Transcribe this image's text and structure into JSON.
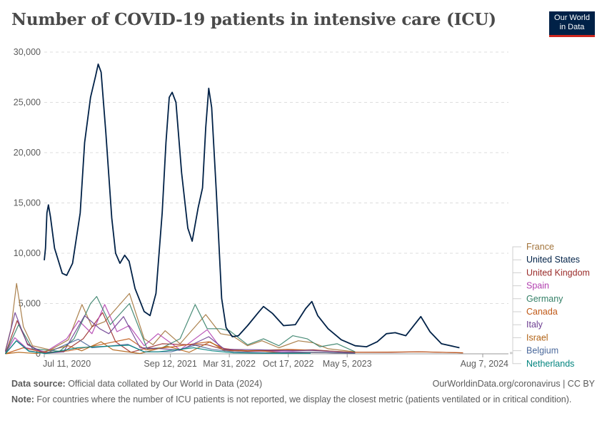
{
  "chart_data": {
    "type": "line",
    "title": "Number of COVID-19 patients in intensive care (ICU)",
    "xlabel": "",
    "ylabel": "",
    "ylim": [
      0,
      30000
    ],
    "y_ticks": [
      0,
      5000,
      10000,
      15000,
      20000,
      25000,
      30000
    ],
    "y_tick_labels": [
      "0",
      "5,000",
      "10,000",
      "15,000",
      "20,000",
      "25,000",
      "30,000"
    ],
    "xlim": [
      "2020-03-01",
      "2024-08-07"
    ],
    "x_ticks": [
      "2020-07-11",
      "2021-09-12",
      "2022-03-31",
      "2022-10-17",
      "2023-05-05",
      "2024-08-07"
    ],
    "x_tick_labels": [
      "Jul 11, 2020",
      "Sep 12, 2021",
      "Mar 31, 2022",
      "Oct 17, 2022",
      "May 5, 2023",
      "Aug 7, 2024"
    ],
    "grid": "horizontal dashed",
    "legend_position": "right",
    "series": [
      {
        "name": "France",
        "color": "#a2733a",
        "points": [
          [
            "2020-03-01",
            300
          ],
          [
            "2020-03-20",
            2500
          ],
          [
            "2020-04-08",
            7000
          ],
          [
            "2020-05-01",
            2700
          ],
          [
            "2020-06-01",
            800
          ],
          [
            "2020-08-01",
            400
          ],
          [
            "2020-10-01",
            1400
          ],
          [
            "2020-11-16",
            4900
          ],
          [
            "2020-12-20",
            2700
          ],
          [
            "2021-02-01",
            3200
          ],
          [
            "2021-04-26",
            6000
          ],
          [
            "2021-06-15",
            1500
          ],
          [
            "2021-07-15",
            900
          ],
          [
            "2021-08-25",
            2300
          ],
          [
            "2021-10-15",
            1000
          ],
          [
            "2022-01-10",
            3900
          ],
          [
            "2022-03-01",
            2000
          ],
          [
            "2022-04-10",
            1800
          ],
          [
            "2022-06-01",
            800
          ],
          [
            "2022-07-20",
            1300
          ],
          [
            "2022-09-15",
            600
          ],
          [
            "2022-11-20",
            1300
          ],
          [
            "2023-01-10",
            1100
          ],
          [
            "2023-03-01",
            500
          ],
          [
            "2023-06-01",
            200
          ]
        ]
      },
      {
        "name": "United States",
        "color": "#002147",
        "points": [
          [
            "2020-07-11",
            9300
          ],
          [
            "2020-07-15",
            10500
          ],
          [
            "2020-07-20",
            14000
          ],
          [
            "2020-07-25",
            14800
          ],
          [
            "2020-08-01",
            13600
          ],
          [
            "2020-08-15",
            10500
          ],
          [
            "2020-09-10",
            8000
          ],
          [
            "2020-09-25",
            7800
          ],
          [
            "2020-10-15",
            9000
          ],
          [
            "2020-11-10",
            14000
          ],
          [
            "2020-11-25",
            21000
          ],
          [
            "2020-12-15",
            25500
          ],
          [
            "2021-01-01",
            27600
          ],
          [
            "2021-01-10",
            28800
          ],
          [
            "2021-01-20",
            28000
          ],
          [
            "2021-02-05",
            22000
          ],
          [
            "2021-02-25",
            13500
          ],
          [
            "2021-03-10",
            10000
          ],
          [
            "2021-03-25",
            9000
          ],
          [
            "2021-04-10",
            9800
          ],
          [
            "2021-04-25",
            9200
          ],
          [
            "2021-05-15",
            6500
          ],
          [
            "2021-06-15",
            4200
          ],
          [
            "2021-07-05",
            3800
          ],
          [
            "2021-07-25",
            6000
          ],
          [
            "2021-08-15",
            14000
          ],
          [
            "2021-08-28",
            21000
          ],
          [
            "2021-09-08",
            25500
          ],
          [
            "2021-09-18",
            26000
          ],
          [
            "2021-10-01",
            25000
          ],
          [
            "2021-10-20",
            18000
          ],
          [
            "2021-11-10",
            12500
          ],
          [
            "2021-11-25",
            11200
          ],
          [
            "2021-12-15",
            14500
          ],
          [
            "2021-12-30",
            16500
          ],
          [
            "2022-01-10",
            22500
          ],
          [
            "2022-01-20",
            26400
          ],
          [
            "2022-01-30",
            24500
          ],
          [
            "2022-02-15",
            16000
          ],
          [
            "2022-03-05",
            5500
          ],
          [
            "2022-03-20",
            2600
          ],
          [
            "2022-04-10",
            1700
          ],
          [
            "2022-05-01",
            1800
          ],
          [
            "2022-06-01",
            2800
          ],
          [
            "2022-07-10",
            4200
          ],
          [
            "2022-07-25",
            4700
          ],
          [
            "2022-08-25",
            4000
          ],
          [
            "2022-10-01",
            2800
          ],
          [
            "2022-11-10",
            2900
          ],
          [
            "2022-12-15",
            4500
          ],
          [
            "2023-01-05",
            5200
          ],
          [
            "2023-01-25",
            3800
          ],
          [
            "2023-03-01",
            2500
          ],
          [
            "2023-04-15",
            1400
          ],
          [
            "2023-06-01",
            800
          ],
          [
            "2023-07-10",
            700
          ],
          [
            "2023-08-15",
            1200
          ],
          [
            "2023-09-15",
            2000
          ],
          [
            "2023-10-15",
            2100
          ],
          [
            "2023-11-20",
            1800
          ],
          [
            "2024-01-10",
            3700
          ],
          [
            "2024-02-10",
            2200
          ],
          [
            "2024-03-20",
            1000
          ],
          [
            "2024-05-20",
            600
          ]
        ]
      },
      {
        "name": "United Kingdom",
        "color": "#9a2c2a",
        "points": [
          [
            "2020-03-01",
            0
          ],
          [
            "2020-04-10",
            3300
          ],
          [
            "2020-05-15",
            1000
          ],
          [
            "2020-07-01",
            150
          ],
          [
            "2020-09-15",
            200
          ],
          [
            "2020-11-20",
            1500
          ],
          [
            "2021-01-25",
            4100
          ],
          [
            "2021-03-10",
            1200
          ],
          [
            "2021-05-01",
            150
          ],
          [
            "2021-08-15",
            1000
          ],
          [
            "2021-11-15",
            900
          ],
          [
            "2022-01-15",
            900
          ],
          [
            "2022-03-15",
            400
          ],
          [
            "2022-06-01",
            250
          ],
          [
            "2022-08-01",
            300
          ],
          [
            "2023-01-10",
            400
          ],
          [
            "2023-05-01",
            150
          ],
          [
            "2023-10-01",
            150
          ],
          [
            "2024-01-01",
            200
          ],
          [
            "2024-06-01",
            100
          ]
        ]
      },
      {
        "name": "Spain",
        "color": "#b13faf",
        "points": [
          [
            "2020-03-01",
            0
          ],
          [
            "2020-04-02",
            1600
          ],
          [
            "2020-05-10",
            600
          ],
          [
            "2020-07-15",
            200
          ],
          [
            "2020-09-25",
            1500
          ],
          [
            "2020-11-05",
            3300
          ],
          [
            "2020-12-20",
            2000
          ],
          [
            "2021-02-01",
            4900
          ],
          [
            "2021-03-15",
            2200
          ],
          [
            "2021-04-25",
            2800
          ],
          [
            "2021-06-15",
            800
          ],
          [
            "2021-08-01",
            2000
          ],
          [
            "2021-10-15",
            400
          ],
          [
            "2022-01-15",
            2400
          ],
          [
            "2022-03-01",
            600
          ],
          [
            "2022-05-01",
            300
          ],
          [
            "2022-08-01",
            250
          ],
          [
            "2023-01-01",
            150
          ],
          [
            "2023-06-01",
            50
          ]
        ]
      },
      {
        "name": "Germany",
        "color": "#358068",
        "points": [
          [
            "2020-03-01",
            0
          ],
          [
            "2020-04-15",
            2900
          ],
          [
            "2020-06-01",
            500
          ],
          [
            "2020-09-01",
            250
          ],
          [
            "2020-10-20",
            1500
          ],
          [
            "2020-12-15",
            5000
          ],
          [
            "2021-01-05",
            5700
          ],
          [
            "2021-02-20",
            2900
          ],
          [
            "2021-04-26",
            5000
          ],
          [
            "2021-06-25",
            500
          ],
          [
            "2021-08-15",
            600
          ],
          [
            "2021-10-15",
            1500
          ],
          [
            "2021-12-05",
            4900
          ],
          [
            "2022-01-15",
            2500
          ],
          [
            "2022-03-01",
            2500
          ],
          [
            "2022-04-01",
            2300
          ],
          [
            "2022-06-01",
            900
          ],
          [
            "2022-07-25",
            1500
          ],
          [
            "2022-09-15",
            800
          ],
          [
            "2022-11-01",
            1800
          ],
          [
            "2022-12-20",
            1500
          ],
          [
            "2023-02-01",
            700
          ],
          [
            "2023-04-01",
            1000
          ],
          [
            "2023-06-01",
            200
          ]
        ]
      },
      {
        "name": "Canada",
        "color": "#c05917",
        "points": [
          [
            "2020-03-01",
            0
          ],
          [
            "2020-05-01",
            600
          ],
          [
            "2020-07-15",
            100
          ],
          [
            "2020-10-01",
            300
          ],
          [
            "2021-01-15",
            900
          ],
          [
            "2021-04-25",
            1500
          ],
          [
            "2021-06-20",
            400
          ],
          [
            "2021-09-20",
            700
          ],
          [
            "2022-01-20",
            1200
          ],
          [
            "2022-03-15",
            500
          ],
          [
            "2022-06-01",
            300
          ],
          [
            "2022-10-15",
            450
          ],
          [
            "2023-01-15",
            350
          ],
          [
            "2023-06-01",
            150
          ],
          [
            "2024-01-15",
            200
          ],
          [
            "2024-06-01",
            100
          ]
        ]
      },
      {
        "name": "Italy",
        "color": "#6d3e91",
        "points": [
          [
            "2020-03-01",
            200
          ],
          [
            "2020-04-03",
            4100
          ],
          [
            "2020-05-15",
            900
          ],
          [
            "2020-07-15",
            50
          ],
          [
            "2020-09-15",
            200
          ],
          [
            "2020-11-25",
            3800
          ],
          [
            "2021-01-15",
            2500
          ],
          [
            "2021-02-15",
            2000
          ],
          [
            "2021-04-06",
            3700
          ],
          [
            "2021-06-01",
            600
          ],
          [
            "2021-08-15",
            500
          ],
          [
            "2021-10-15",
            350
          ],
          [
            "2022-01-20",
            1700
          ],
          [
            "2022-03-15",
            450
          ],
          [
            "2022-07-15",
            400
          ],
          [
            "2022-11-01",
            300
          ],
          [
            "2023-01-01",
            350
          ],
          [
            "2023-06-01",
            100
          ]
        ]
      },
      {
        "name": "Israel",
        "color": "#b16214",
        "points": [
          [
            "2020-03-01",
            0
          ],
          [
            "2020-04-15",
            150
          ],
          [
            "2020-06-15",
            20
          ],
          [
            "2020-09-30",
            800
          ],
          [
            "2020-11-15",
            300
          ],
          [
            "2021-01-20",
            1200
          ],
          [
            "2021-03-01",
            400
          ],
          [
            "2021-06-01",
            30
          ],
          [
            "2021-09-01",
            750
          ],
          [
            "2021-11-15",
            150
          ],
          [
            "2022-01-25",
            1200
          ],
          [
            "2022-03-15",
            300
          ],
          [
            "2022-07-15",
            300
          ],
          [
            "2022-10-01",
            80
          ],
          [
            "2023-01-15",
            150
          ],
          [
            "2023-06-01",
            50
          ]
        ]
      },
      {
        "name": "Belgium",
        "color": "#4c6a9c",
        "points": [
          [
            "2020-03-01",
            0
          ],
          [
            "2020-04-08",
            1300
          ],
          [
            "2020-05-20",
            300
          ],
          [
            "2020-07-15",
            30
          ],
          [
            "2020-11-03",
            1450
          ],
          [
            "2020-12-20",
            600
          ],
          [
            "2021-04-20",
            950
          ],
          [
            "2021-06-15",
            200
          ],
          [
            "2021-09-15",
            200
          ],
          [
            "2021-12-05",
            850
          ],
          [
            "2022-01-30",
            450
          ],
          [
            "2022-04-15",
            200
          ],
          [
            "2022-08-01",
            100
          ],
          [
            "2023-01-01",
            150
          ],
          [
            "2023-06-01",
            40
          ]
        ]
      },
      {
        "name": "Netherlands",
        "color": "#00847e",
        "points": [
          [
            "2020-03-01",
            0
          ],
          [
            "2020-04-07",
            1300
          ],
          [
            "2020-05-20",
            250
          ],
          [
            "2020-07-15",
            20
          ],
          [
            "2020-10-15",
            500
          ],
          [
            "2020-11-01",
            600
          ],
          [
            "2021-01-01",
            700
          ],
          [
            "2021-04-25",
            850
          ],
          [
            "2021-06-15",
            200
          ],
          [
            "2021-08-01",
            200
          ],
          [
            "2021-11-30",
            600
          ],
          [
            "2022-02-01",
            300
          ],
          [
            "2022-04-15",
            100
          ],
          [
            "2022-08-01",
            60
          ],
          [
            "2023-01-01",
            50
          ]
        ]
      }
    ]
  },
  "footer": {
    "source_label": "Data source:",
    "source_text": " Official data collated by Our World in Data (2024)",
    "right_text": "OurWorldinData.org/coronavirus | CC BY",
    "note_label": "Note:",
    "note_text": " For countries where the number of ICU patients is not reported, we display the closest metric (patients ventilated or in critical condition)."
  },
  "logo": {
    "line1": "Our World",
    "line2": "in Data"
  }
}
